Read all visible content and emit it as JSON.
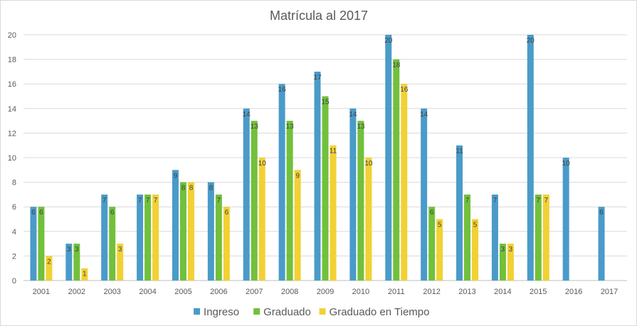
{
  "chart_data": {
    "type": "bar",
    "title": "Matrícula al 2017",
    "xlabel": "",
    "ylabel": "",
    "ylim": [
      0,
      20
    ],
    "yticks": [
      0,
      2,
      4,
      6,
      8,
      10,
      12,
      14,
      16,
      18,
      20
    ],
    "grid": true,
    "legend_position": "bottom",
    "categories": [
      "2001",
      "2002",
      "2003",
      "2004",
      "2005",
      "2006",
      "2007",
      "2008",
      "2009",
      "2010",
      "2011",
      "2012",
      "2013",
      "2014",
      "2015",
      "2016",
      "2017"
    ],
    "series": [
      {
        "name": "Ingreso",
        "color": "#4a9bc9",
        "values": [
          6,
          3,
          7,
          7,
          9,
          8,
          14,
          16,
          17,
          14,
          20,
          14,
          11,
          7,
          20,
          10,
          6
        ]
      },
      {
        "name": "Graduado",
        "color": "#72c03b",
        "values": [
          6,
          3,
          6,
          7,
          8,
          7,
          13,
          13,
          15,
          13,
          18,
          6,
          7,
          3,
          7,
          null,
          null
        ]
      },
      {
        "name": "Graduado en Tiempo",
        "color": "#f2d134",
        "values": [
          2,
          1,
          3,
          7,
          8,
          6,
          10,
          9,
          11,
          10,
          16,
          5,
          5,
          3,
          7,
          null,
          null
        ]
      }
    ]
  }
}
